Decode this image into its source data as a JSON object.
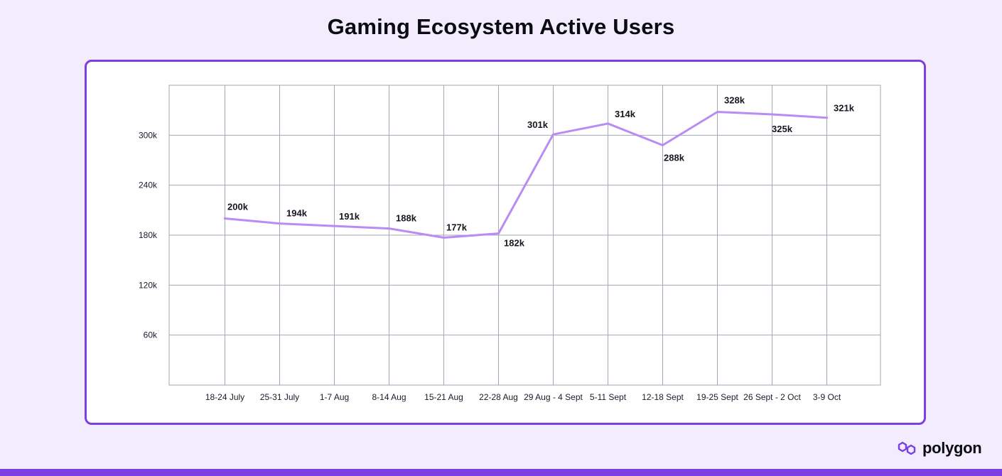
{
  "page": {
    "title": "Gaming Ecosystem Active Users",
    "brand": "polygon",
    "colors": {
      "accent": "#7b3fe4",
      "line": "#b98cf5",
      "grid": "#a4a7b5",
      "background": "#f2ecfc"
    }
  },
  "chart_data": {
    "type": "line",
    "title": "Gaming Ecosystem Active Users",
    "xlabel": "",
    "ylabel": "",
    "ylim": [
      0,
      360000
    ],
    "yticks": [
      60000,
      120000,
      180000,
      240000,
      300000
    ],
    "ytick_labels": [
      "60k",
      "120k",
      "180k",
      "240k",
      "300k"
    ],
    "grid": true,
    "categories": [
      "18-24 July",
      "25-31 July",
      "1-7 Aug",
      "8-14 Aug",
      "15-21 Aug",
      "22-28 Aug",
      "29 Aug - 4 Sept",
      "5-11 Sept",
      "12-18 Sept",
      "19-25 Sept",
      "26 Sept - 2 Oct",
      "3-9 Oct"
    ],
    "series": [
      {
        "name": "Active Users",
        "values": [
          200000,
          194000,
          191000,
          188000,
          177000,
          182000,
          301000,
          314000,
          288000,
          328000,
          325000,
          321000
        ],
        "data_labels": [
          "200k",
          "194k",
          "191k",
          "188k",
          "177k",
          "182k",
          "301k",
          "314k",
          "288k",
          "328k",
          "325k",
          "321k"
        ]
      }
    ]
  }
}
